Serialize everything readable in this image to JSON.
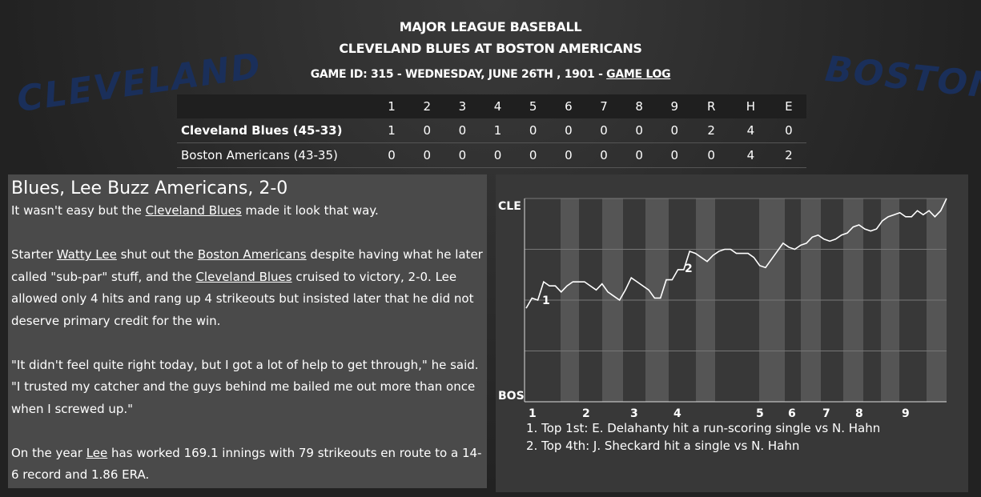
{
  "header": {
    "league": "MAJOR LEAGUE BASEBALL",
    "matchup": "CLEVELAND BLUES AT BOSTON AMERICANS",
    "game_info": "GAME ID: 315 - WEDNESDAY, JUNE 26TH , 1901 - ",
    "game_log": "GAME LOG"
  },
  "logos": {
    "away": "CLEVELAND",
    "home": "BOSTON"
  },
  "linescore": {
    "columns": [
      "1",
      "2",
      "3",
      "4",
      "5",
      "6",
      "7",
      "8",
      "9",
      "R",
      "H",
      "E"
    ],
    "rows": [
      {
        "team": "Cleveland Blues (45-33)",
        "cells": [
          1,
          0,
          0,
          1,
          0,
          0,
          0,
          0,
          0,
          2,
          4,
          0
        ]
      },
      {
        "team": "Boston Americans (43-35)",
        "cells": [
          0,
          0,
          0,
          0,
          0,
          0,
          0,
          0,
          0,
          0,
          4,
          2
        ]
      }
    ]
  },
  "article": {
    "headline": "Blues, Lee Buzz Americans, 2-0",
    "paragraphs": [
      [
        "It wasn't easy but the ",
        {
          "link": "Cleveland Blues"
        },
        " made it look that way."
      ],
      [
        "Starter ",
        {
          "link": "Watty Lee"
        },
        " shut out the ",
        {
          "link": "Boston Americans"
        },
        " despite having what he later called \"sub-par\" stuff, and the ",
        {
          "link": "Cleveland Blues"
        },
        " cruised to victory, 2-0. Lee allowed only 4 hits and rang up 4 strikeouts but insisted later that he did not deserve primary credit for the win."
      ],
      [
        "\"It didn't feel quite right today, but I got a lot of help to get through,\" he said. \"I trusted my catcher and the guys behind me bailed me out more than once when I screwed up.\""
      ],
      [
        "On the year ",
        {
          "link": "Lee"
        },
        " has worked 169.1 innings with 79 strikeouts en route to a 14-6 record and 1.86 ERA."
      ]
    ]
  },
  "chart_data": {
    "type": "line",
    "top_label": "CLE",
    "bottom_label": "BOS",
    "ylim": [
      0,
      100
    ],
    "innings": [
      "1",
      "2",
      "3",
      "4",
      "5",
      "6",
      "7",
      "8",
      "9"
    ],
    "values": [
      46,
      51,
      50,
      59,
      57,
      57,
      54,
      57,
      59,
      59,
      59,
      57,
      55,
      58,
      54,
      52,
      50,
      55,
      61,
      59,
      57,
      55,
      51,
      51,
      60,
      60,
      65,
      65,
      74,
      73,
      71,
      69,
      72,
      74,
      75,
      75,
      73,
      73,
      73,
      71,
      67,
      66,
      70,
      74,
      78,
      76,
      75,
      77,
      78,
      81,
      82,
      80,
      79,
      80,
      82,
      83,
      86,
      87,
      85,
      84,
      85,
      89,
      91,
      92,
      93,
      91,
      91,
      94,
      92,
      94,
      91,
      94,
      100
    ],
    "color": "#ffffff",
    "markers": [
      "1",
      "2"
    ],
    "notes": [
      "1. Top 1st: E. Delahanty hit a run-scoring single vs N. Hahn",
      "2. Top 4th: J. Sheckard hit a single vs N. Hahn"
    ]
  }
}
